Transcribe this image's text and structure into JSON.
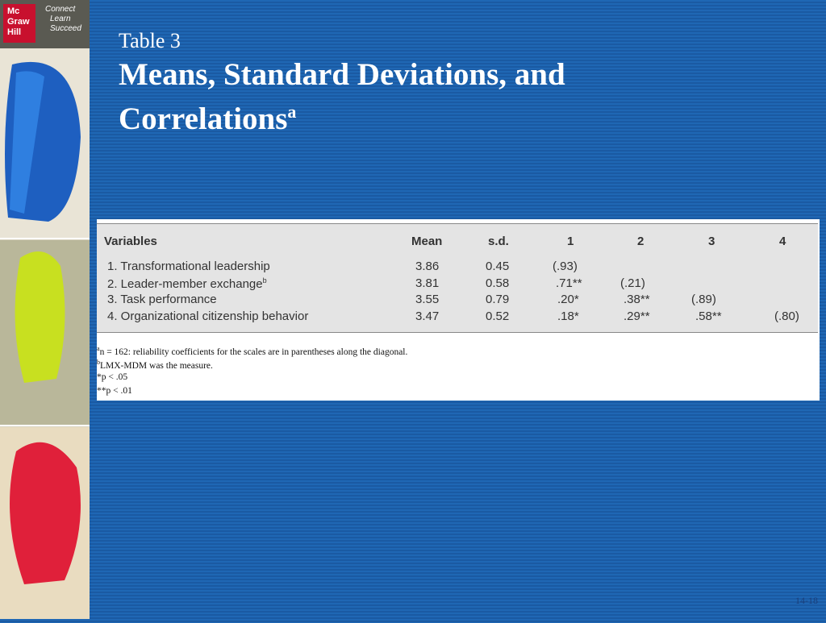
{
  "logo": {
    "brand": [
      "Mc",
      "Graw",
      "Hill"
    ],
    "tagline": [
      "Connect",
      "Learn",
      "Succeed"
    ]
  },
  "header": {
    "label": "Table 3",
    "title": "Means, Standard Deviations, and Correlations",
    "title_note": "a"
  },
  "table": {
    "columns": [
      "Variables",
      "Mean",
      "s.d.",
      "1",
      "2",
      "3",
      "4"
    ],
    "rows": [
      {
        "variable": "1. Transformational leadership",
        "mean": "3.86",
        "sd": "0.45",
        "correlations": [
          "(.93)"
        ]
      },
      {
        "variable": "2. Leader-member exchange",
        "note": "b",
        "mean": "3.81",
        "sd": "0.58",
        "correlations": [
          ".71**",
          "(.21)"
        ]
      },
      {
        "variable": "3. Task performance",
        "mean": "3.55",
        "sd": "0.79",
        "correlations": [
          ".20*",
          ".38**",
          "(.89)"
        ]
      },
      {
        "variable": "4. Organizational citizenship behavior",
        "mean": "3.47",
        "sd": "0.52",
        "correlations": [
          ".18*",
          ".29**",
          ".58**",
          "(.80)"
        ]
      }
    ],
    "footnotes": [
      {
        "mark": "a",
        "text": "n = 162: reliability coefficients for the scales are in parentheses along the diagonal."
      },
      {
        "mark": "b",
        "text": "LMX-MDM was the measure."
      },
      {
        "mark": "*",
        "text": "p < .05"
      },
      {
        "mark": "**",
        "text": "p < .01"
      }
    ]
  },
  "footer": {
    "page": "14-18"
  }
}
